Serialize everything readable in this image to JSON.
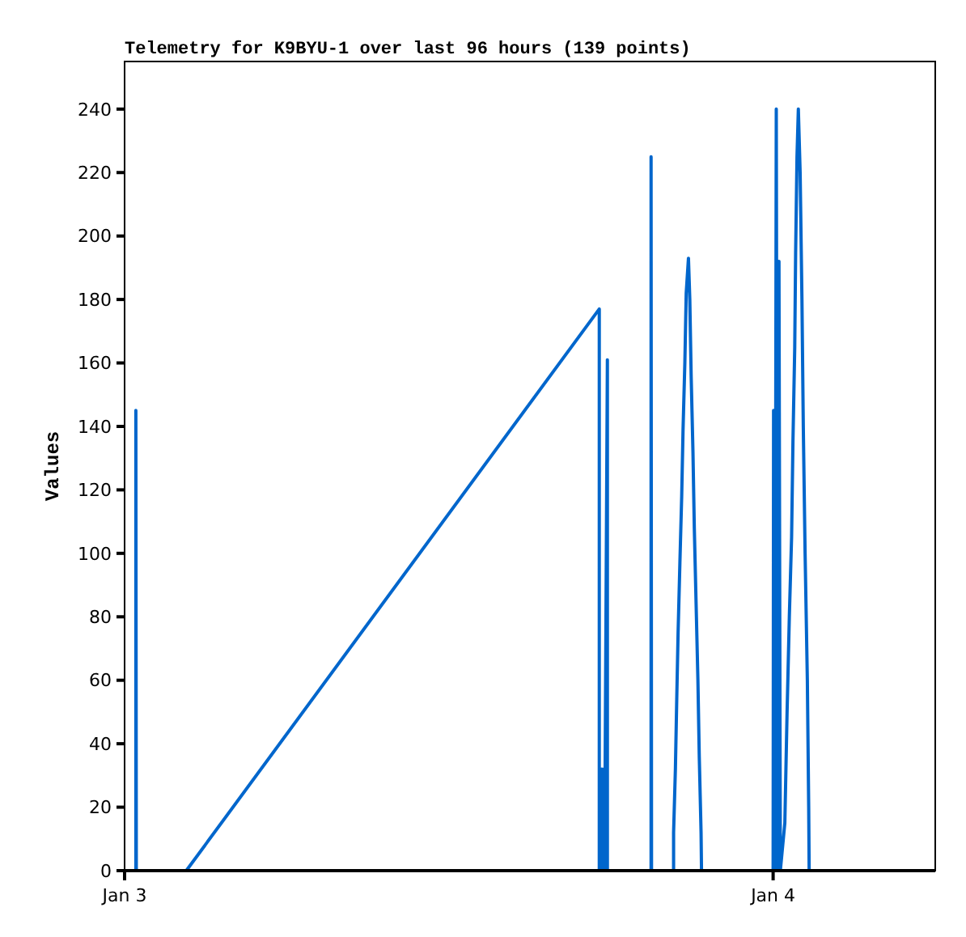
{
  "chart_data": {
    "type": "line",
    "title": "Telemetry for K9BYU-1 over last 96 hours (139 points)",
    "ylabel": "Values",
    "xlim": [
      "--01-03T00:00",
      "--01-04T06:00"
    ],
    "xticks": [
      {
        "value": "--01-03",
        "label": "Jan 3"
      },
      {
        "value": "--01-04",
        "label": "Jan 4"
      }
    ],
    "ylim": [
      0,
      255
    ],
    "yticks": [
      0,
      20,
      40,
      60,
      80,
      100,
      120,
      140,
      160,
      180,
      200,
      220,
      240
    ],
    "series": [
      {
        "color": "#0066cc",
        "x": [
          "--01-03T00:25",
          "--01-03T00:25",
          "--01-03T00:26",
          "--01-03T02:17",
          "--01-03T17:34",
          "--01-03T17:34",
          "--01-03T17:37",
          "--01-03T17:38",
          "--01-03T17:40",
          "--01-03T17:42",
          "--01-03T17:44",
          "--01-03T17:46",
          "--01-03T17:47",
          "--01-03T17:52",
          "--01-03T17:52",
          "--01-03T19:29",
          "--01-03T19:29",
          "--01-03T19:30",
          "--01-03T20:19",
          "--01-03T20:19",
          "--01-03T20:23",
          "--01-03T20:26",
          "--01-03T20:29",
          "--01-03T20:33",
          "--01-03T20:37",
          "--01-03T20:40",
          "--01-03T20:44",
          "--01-03T20:47",
          "--01-03T20:52",
          "--01-03T20:55",
          "--01-03T20:58",
          "--01-03T21:02",
          "--01-03T21:05",
          "--01-03T21:09",
          "--01-03T21:13",
          "--01-03T21:16",
          "--01-03T21:20",
          "--01-03T21:21",
          "--01-04T00:00",
          "--01-04T00:01",
          "--01-04T00:04",
          "--01-04T00:07",
          "--01-04T00:10",
          "--01-04T00:13",
          "--01-04T00:16",
          "--01-04T00:26",
          "--01-04T00:31",
          "--01-04T00:36",
          "--01-04T00:41",
          "--01-04T00:44",
          "--01-04T00:48",
          "--01-04T00:50",
          "--01-04T00:53",
          "--01-04T00:56",
          "--01-04T01:00",
          "--01-04T01:04",
          "--01-04T01:07",
          "--01-04T01:11",
          "--01-04T01:16",
          "--01-04T01:19",
          "--01-04T01:20"
        ],
        "values": [
          0,
          145,
          0,
          0,
          177,
          0,
          32,
          0,
          32,
          0,
          32,
          0,
          32,
          161,
          0,
          0,
          225,
          0,
          0,
          12,
          32,
          54,
          75,
          97,
          118,
          139,
          160,
          182,
          193,
          180,
          156,
          132,
          108,
          84,
          60,
          36,
          12,
          0,
          0,
          145,
          0,
          240,
          0,
          192,
          0,
          15,
          50,
          80,
          105,
          135,
          165,
          195,
          225,
          240,
          220,
          180,
          140,
          100,
          60,
          20,
          0
        ]
      }
    ]
  }
}
